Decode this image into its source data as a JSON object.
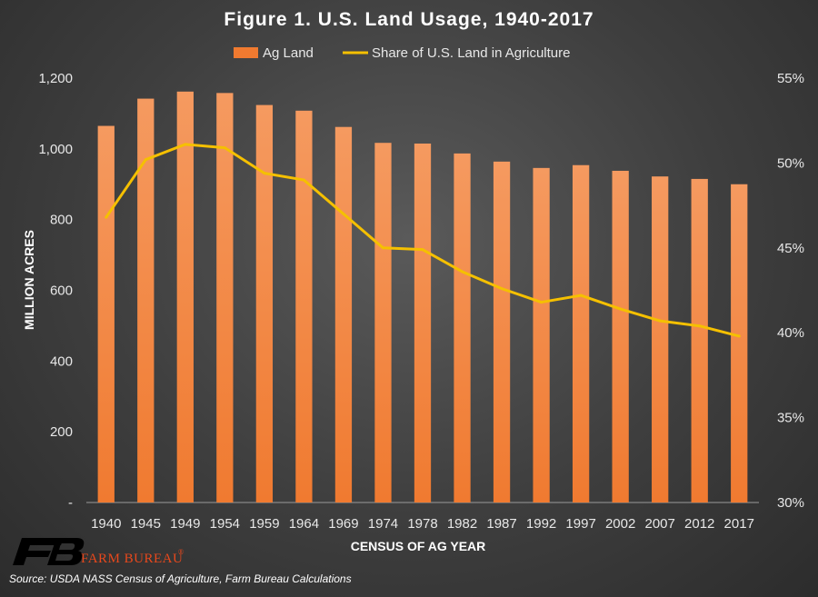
{
  "chart_data": {
    "type": "bar",
    "title": "Figure 1. U.S. Land Usage, 1940-2017",
    "xlabel": "CENSUS OF AG YEAR",
    "ylabel": "MILLION ACRES",
    "categories": [
      "1940",
      "1945",
      "1949",
      "1954",
      "1959",
      "1964",
      "1969",
      "1974",
      "1978",
      "1982",
      "1987",
      "1992",
      "1997",
      "2002",
      "2007",
      "2012",
      "2017"
    ],
    "series": [
      {
        "name": "Ag Land",
        "type": "bar",
        "axis": "left",
        "color": "#f07a30",
        "values": [
          1065,
          1142,
          1162,
          1158,
          1124,
          1108,
          1062,
          1017,
          1015,
          987,
          964,
          946,
          954,
          938,
          922,
          915,
          900
        ]
      },
      {
        "name": "Share of U.S. Land in Agriculture",
        "type": "line",
        "axis": "right",
        "color": "#f5c000",
        "values": [
          46.8,
          50.2,
          51.1,
          50.9,
          49.4,
          49.0,
          47.0,
          45.0,
          44.9,
          43.6,
          42.6,
          41.8,
          42.2,
          41.4,
          40.7,
          40.4,
          39.8
        ]
      }
    ],
    "ylim": [
      0,
      1200
    ],
    "yticks": [
      0,
      200,
      400,
      600,
      800,
      1000,
      1200
    ],
    "ytick_labels": [
      "-",
      "200",
      "400",
      "600",
      "800",
      "1,000",
      "1,200"
    ],
    "y2lim": [
      30,
      55
    ],
    "y2ticks": [
      30,
      35,
      40,
      45,
      50,
      55
    ],
    "y2tick_labels": [
      "30%",
      "35%",
      "40%",
      "45%",
      "50%",
      "55%"
    ],
    "legend": "top",
    "grid": false
  },
  "branding": {
    "logo_text": "FARM BUREAU",
    "logo_mark": "®",
    "source": "Source: USDA NASS Census of Agriculture, Farm Bureau Calculations"
  }
}
